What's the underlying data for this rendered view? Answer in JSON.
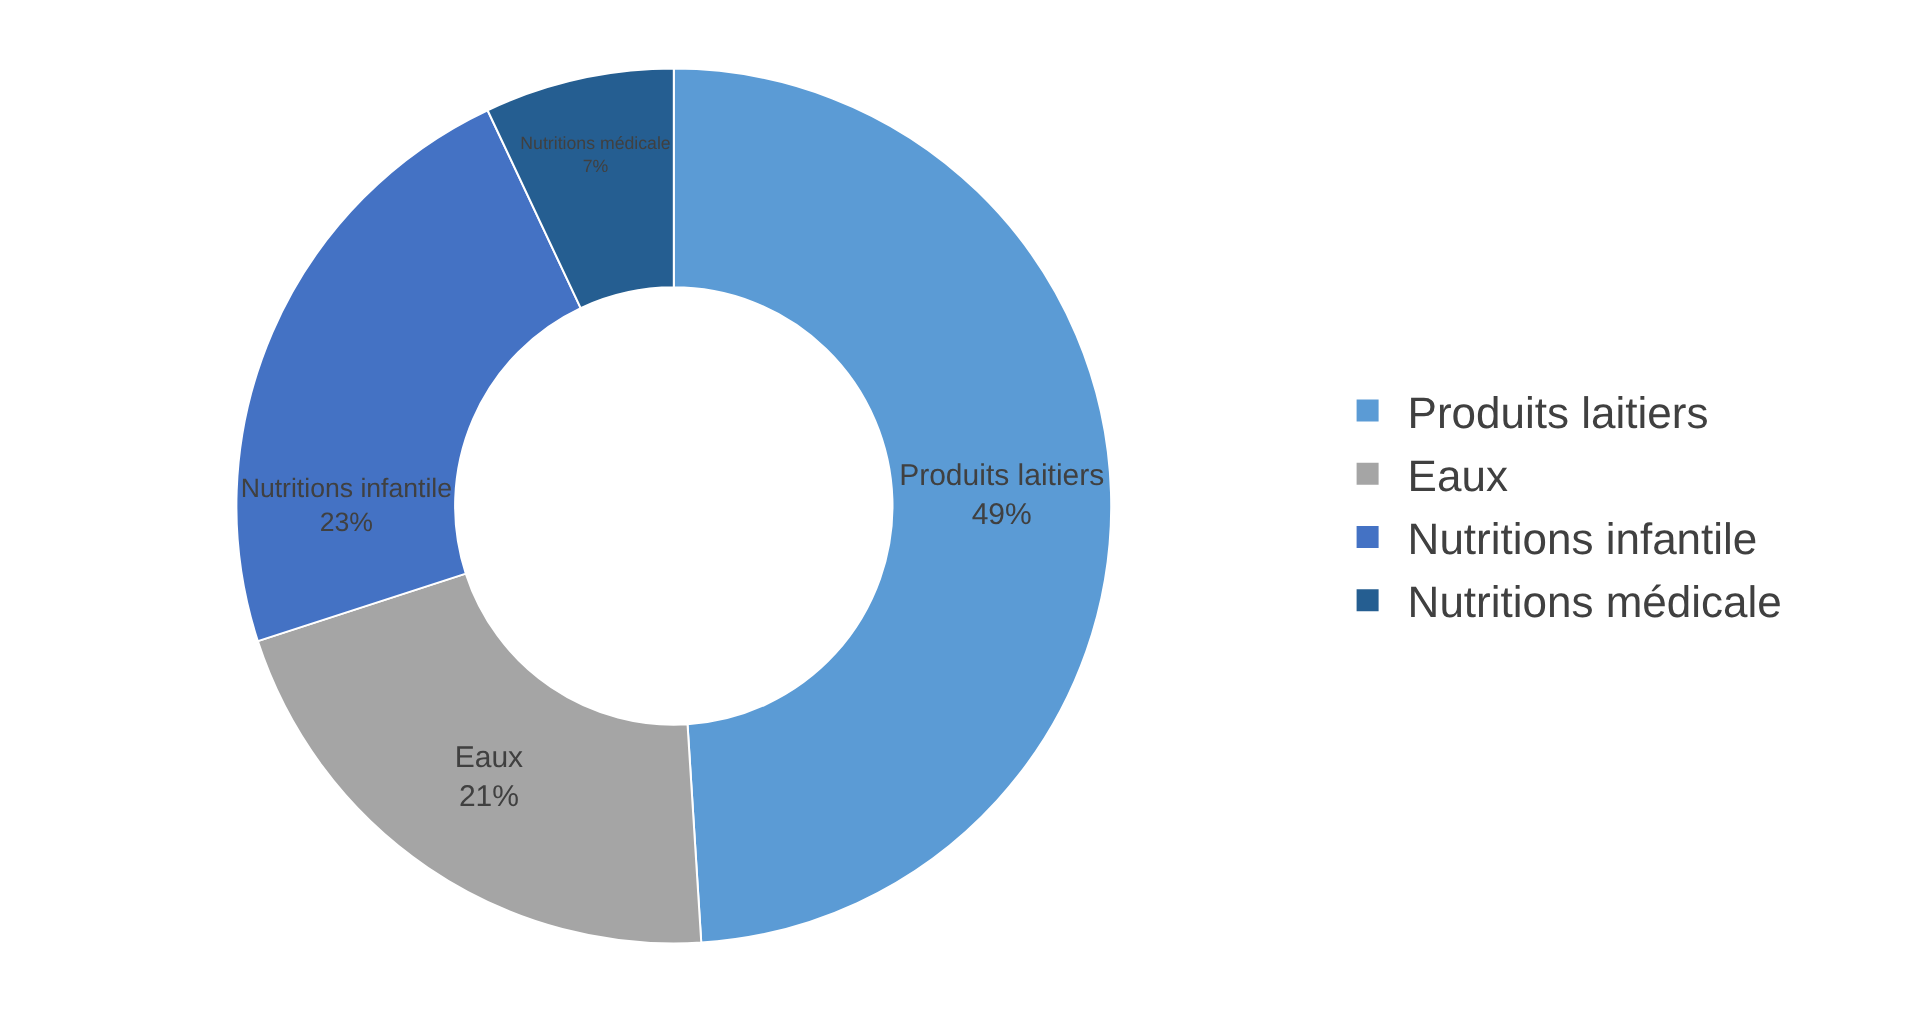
{
  "chart_data": {
    "type": "donut",
    "categories": [
      "Produits laitiers",
      "Eaux",
      "Nutritions infantile",
      "Nutritions médicale"
    ],
    "values": [
      49,
      21,
      23,
      7
    ],
    "value_labels": [
      "49%",
      "21%",
      "23%",
      "7%"
    ],
    "colors": [
      "#5b9bd5",
      "#a5a5a5",
      "#4472c4",
      "#255e91"
    ],
    "legend": "right"
  }
}
